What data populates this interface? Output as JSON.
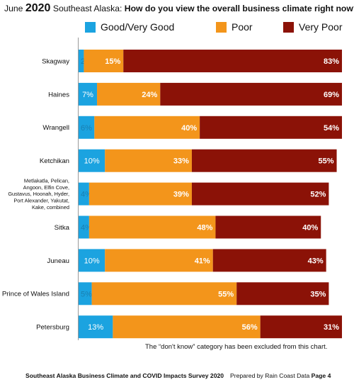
{
  "title": {
    "prefix": "June",
    "year": "2020",
    "region": "Southeast Alaska:",
    "question": "How do you view the overall business climate right now?"
  },
  "chart_data": {
    "type": "bar",
    "orientation": "horizontal",
    "stacked": true,
    "categories": [
      "Skagway",
      "Haines",
      "Wrangell",
      "Ketchikan",
      "Metlakatla, Pelican, Angoon, Elfin Cove, Gustavus, Hoonah, Hyder, Port Alexander, Yakutat, Kake, combined",
      "Sitka",
      "Juneau",
      "Prince of Wales Island",
      "Petersburg"
    ],
    "series": [
      {
        "name": "Good/Very Good",
        "color": "#1ba3e0",
        "values": [
          2,
          7,
          6,
          10,
          4,
          4,
          10,
          5,
          13
        ]
      },
      {
        "name": "Poor",
        "color": "#f3951b",
        "values": [
          15,
          24,
          40,
          33,
          39,
          48,
          41,
          55,
          56
        ]
      },
      {
        "name": "Very Poor",
        "color": "#8b1207",
        "values": [
          83,
          69,
          54,
          55,
          52,
          40,
          43,
          35,
          31
        ]
      }
    ],
    "legend_position": "top",
    "grid": false
  },
  "footnote": "The “don't know” category has been excluded from this chart.",
  "footer": {
    "left": "Southeast Alaska Business Climate and COVID Impacts Survey 2020",
    "right_prefix": "Prepared by Rain Coast Data",
    "page": "Page 4"
  }
}
